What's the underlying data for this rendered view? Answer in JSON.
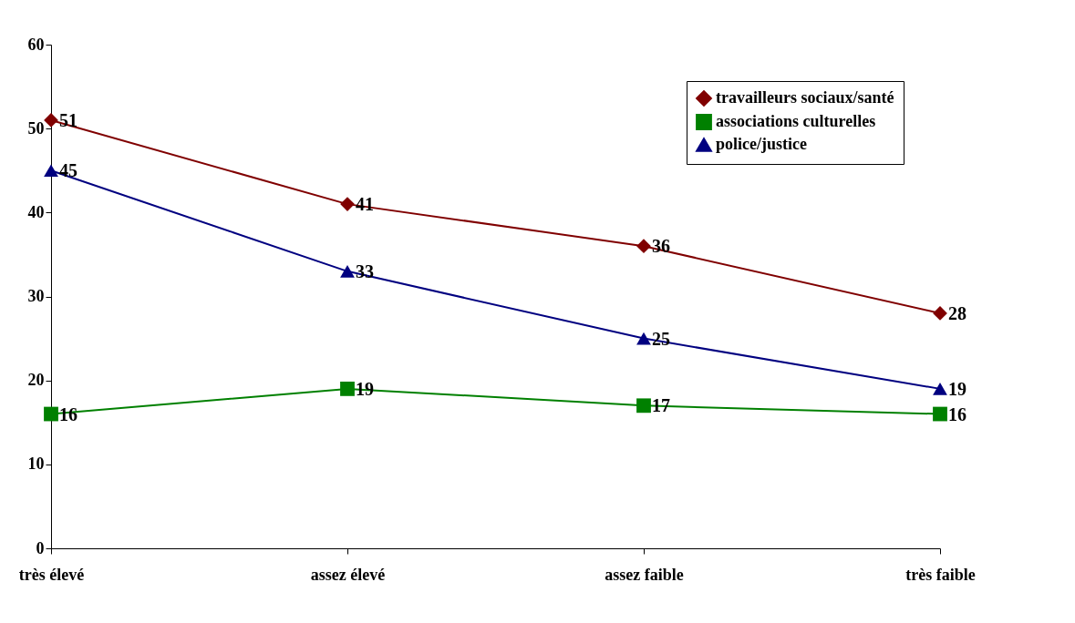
{
  "chart_data": {
    "type": "line",
    "categories": [
      "très élevé",
      "assez élevé",
      "assez faible",
      "très faible"
    ],
    "series": [
      {
        "name": "travailleurs sociaux/santé",
        "color": "#800000",
        "marker": "diamond",
        "values": [
          51,
          41,
          36,
          28
        ]
      },
      {
        "name": "associations culturelles",
        "color": "#008000",
        "marker": "square",
        "values": [
          16,
          19,
          17,
          16
        ]
      },
      {
        "name": "police/justice",
        "color": "#000080",
        "marker": "triangle",
        "values": [
          45,
          33,
          25,
          19
        ]
      }
    ],
    "ylim": [
      0,
      60
    ],
    "yticks": [
      0,
      10,
      20,
      30,
      40,
      50,
      60
    ],
    "grid": false,
    "legend": "top right",
    "data_labels": true,
    "line_style": "solid"
  }
}
